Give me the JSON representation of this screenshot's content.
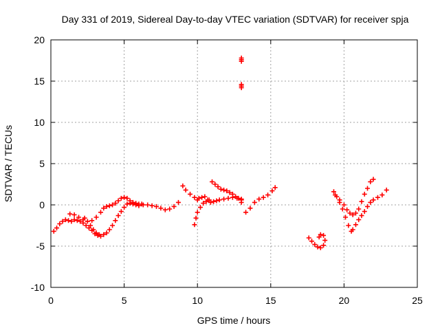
{
  "chart_data": {
    "type": "scatter",
    "title": "Day 331 of 2019, Sidereal Day-to-day VTEC variation (SDTVAR) for receiver spja",
    "xlabel": "GPS time / hours",
    "ylabel": "SDTVAR / TECUs",
    "xlim": [
      0,
      25
    ],
    "ylim": [
      -10,
      20
    ],
    "xticks": [
      0,
      5,
      10,
      15,
      20,
      25
    ],
    "yticks": [
      -10,
      -5,
      0,
      5,
      10,
      15,
      20
    ],
    "xtick_labels": [
      "0",
      "5",
      "10",
      "15",
      "20",
      "25"
    ],
    "ytick_labels": [
      "-10",
      "-5",
      "0",
      "5",
      "10",
      "15",
      "20"
    ],
    "grid": true,
    "marker": "+",
    "color": "#ff0000",
    "series": [
      {
        "name": "SDTVAR",
        "x": [
          0.2,
          0.4,
          0.6,
          0.8,
          1.0,
          1.2,
          1.4,
          1.6,
          1.8,
          2.0,
          2.2,
          2.4,
          2.6,
          2.8,
          3.0,
          3.2,
          3.4,
          3.6,
          3.8,
          4.0,
          4.2,
          4.4,
          4.6,
          4.8,
          5.0,
          5.2,
          5.4,
          5.6,
          5.8,
          6.0,
          6.3,
          6.6,
          6.9,
          7.2,
          7.5,
          7.8,
          8.1,
          8.4,
          8.7,
          9.0,
          9.2,
          9.5,
          9.8,
          10.0,
          10.1,
          10.3,
          10.5,
          10.7,
          10.9,
          11.1,
          11.3,
          11.5,
          11.8,
          12.1,
          12.4,
          12.7,
          13.0,
          13.3,
          13.6,
          13.9,
          14.2,
          14.5,
          14.8,
          15.1,
          15.3,
          1.3,
          1.6,
          1.9,
          2.2,
          2.5,
          2.8,
          3.1,
          3.4,
          3.6,
          3.8,
          4.0,
          4.2,
          4.4,
          4.6,
          4.8,
          5.0,
          5.2,
          5.4,
          5.6,
          5.8,
          6.0,
          6.2,
          2.3,
          2.5,
          2.7,
          2.9,
          3.1,
          3.3,
          9.8,
          9.9,
          10.0,
          10.2,
          10.4,
          10.6,
          10.8,
          11.0,
          11.2,
          11.4,
          11.6,
          11.8,
          12.0,
          12.2,
          12.4,
          12.6,
          12.8,
          13.0,
          13.0,
          13.0,
          13.0,
          13.0,
          13.0,
          13.0,
          13.0,
          17.6,
          17.8,
          18.0,
          18.2,
          18.4,
          18.6,
          18.7,
          18.6,
          18.4,
          18.3,
          19.3,
          19.5,
          19.7,
          19.9,
          20.1,
          20.3,
          20.5,
          20.6,
          20.8,
          21.0,
          21.2,
          21.4,
          21.6,
          21.8,
          22.0,
          22.3,
          22.6,
          22.9,
          19.4,
          19.7,
          20.0,
          20.2,
          20.4,
          20.6,
          20.8,
          21.0,
          21.2,
          21.4,
          21.6,
          21.8,
          22.0
        ],
        "y": [
          -3.2,
          -2.8,
          -2.3,
          -2.0,
          -1.8,
          -1.9,
          -2.0,
          -1.8,
          -1.9,
          -2.0,
          -2.2,
          -2.5,
          -2.8,
          -3.1,
          -3.5,
          -3.7,
          -3.8,
          -3.6,
          -3.4,
          -3.0,
          -2.5,
          -1.9,
          -1.3,
          -0.8,
          -0.3,
          0.1,
          0.2,
          0.1,
          0.0,
          -0.1,
          0.0,
          0.0,
          -0.1,
          -0.2,
          -0.4,
          -0.6,
          -0.5,
          -0.2,
          0.3,
          2.3,
          1.8,
          1.3,
          0.9,
          0.6,
          0.8,
          0.9,
          1.0,
          0.6,
          0.3,
          0.4,
          0.5,
          0.6,
          0.7,
          0.8,
          0.9,
          0.8,
          0.7,
          -0.9,
          -0.4,
          0.3,
          0.7,
          0.9,
          1.2,
          1.7,
          2.1,
          -1.1,
          -1.2,
          -1.5,
          -1.8,
          -2.0,
          -1.9,
          -1.5,
          -0.9,
          -0.4,
          -0.2,
          -0.1,
          0.0,
          0.2,
          0.5,
          0.8,
          0.9,
          0.8,
          0.5,
          0.3,
          0.2,
          0.1,
          0.1,
          -1.6,
          -2.0,
          -2.5,
          -3.0,
          -3.4,
          -3.6,
          -2.4,
          -1.6,
          -0.9,
          -0.3,
          0.2,
          0.4,
          0.6,
          2.8,
          2.5,
          2.2,
          1.9,
          1.8,
          1.7,
          1.5,
          1.3,
          1.0,
          0.8,
          17.8,
          17.4,
          14.6,
          14.2,
          17.6,
          14.4,
          0.6,
          0.3,
          -4.0,
          -4.4,
          -4.8,
          -5.1,
          -5.2,
          -4.9,
          -4.3,
          -3.7,
          -3.6,
          -3.9,
          1.6,
          1.0,
          0.3,
          -0.5,
          -1.5,
          -2.5,
          -3.2,
          -3.0,
          -2.4,
          -1.8,
          -1.3,
          -0.8,
          -0.2,
          0.3,
          0.6,
          0.9,
          1.2,
          1.8,
          1.2,
          0.6,
          0.0,
          -0.6,
          -1.0,
          -1.2,
          -1.0,
          -0.5,
          0.4,
          1.3,
          2.0,
          2.8,
          3.1
        ]
      }
    ]
  }
}
